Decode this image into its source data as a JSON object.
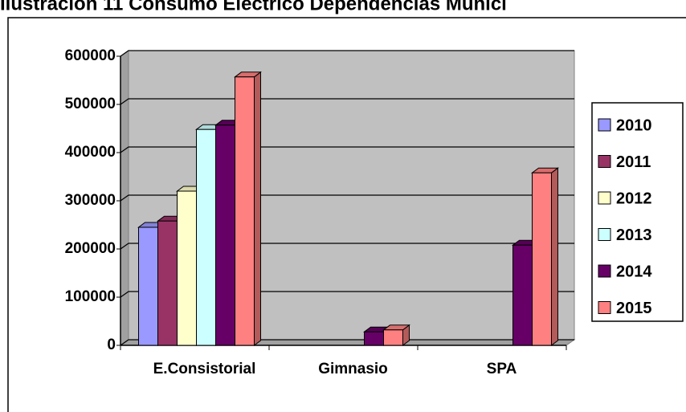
{
  "chart_data": {
    "type": "bar3d",
    "title": "Ilustración 11 Consumo Eléctrico Dependencias Munici",
    "categories": [
      "E.Consistorial",
      "Gimnasio",
      "SPA"
    ],
    "series": [
      {
        "name": "2010",
        "color": "#9999ff",
        "values": [
          245000,
          null,
          null
        ]
      },
      {
        "name": "2011",
        "color": "#993366",
        "values": [
          258000,
          null,
          null
        ]
      },
      {
        "name": "2012",
        "color": "#ffffcc",
        "values": [
          320000,
          null,
          null
        ]
      },
      {
        "name": "2013",
        "color": "#ccffff",
        "values": [
          448000,
          null,
          null
        ]
      },
      {
        "name": "2014",
        "color": "#660066",
        "values": [
          457000,
          28000,
          208000
        ]
      },
      {
        "name": "2015",
        "color": "#ff8080",
        "values": [
          557000,
          32000,
          358000
        ]
      }
    ],
    "ylim": [
      0,
      600000
    ],
    "yticks": [
      0,
      100000,
      200000,
      300000,
      400000,
      500000,
      600000
    ],
    "grid": true,
    "legend": "right"
  }
}
